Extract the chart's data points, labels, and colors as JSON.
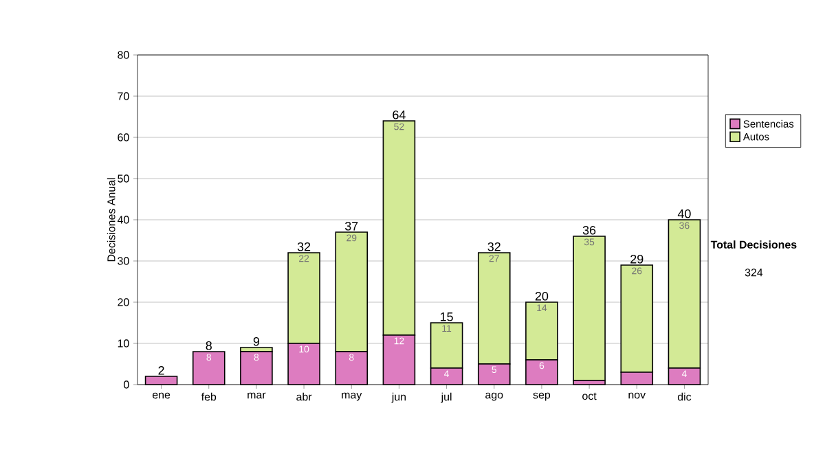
{
  "chart_data": {
    "type": "bar",
    "stacked": true,
    "ylabel": "Decisiones Anual",
    "categories": [
      "ene",
      "feb",
      "mar",
      "abr",
      "may",
      "jun",
      "jul",
      "ago",
      "sep",
      "oct",
      "nov",
      "dic"
    ],
    "series": [
      {
        "name": "Sentencias",
        "color": "#dd7cc0",
        "values": [
          2,
          8,
          8,
          10,
          8,
          12,
          4,
          5,
          6,
          1,
          3,
          4
        ],
        "value_labels": [
          null,
          "8",
          "8",
          "10",
          "8",
          "12",
          "4",
          "5",
          "6",
          null,
          null,
          "4"
        ]
      },
      {
        "name": "Autos",
        "color": "#d3ea96",
        "values": [
          0,
          0,
          1,
          22,
          29,
          52,
          11,
          27,
          14,
          35,
          26,
          36
        ],
        "value_labels": [
          null,
          null,
          null,
          "22",
          "29",
          "52",
          "11",
          "27",
          "14",
          "35",
          "26",
          "36"
        ]
      }
    ],
    "totals": [
      "2",
      "8",
      "9",
      "32",
      "37",
      "64",
      "15",
      "32",
      "20",
      "36",
      "29",
      "40"
    ],
    "ylim": [
      0,
      80
    ],
    "yticks": [
      0,
      10,
      20,
      30,
      40,
      50,
      60,
      70,
      80
    ],
    "grid": "y",
    "legend": "right",
    "annotations": [
      "Total Decisiones",
      "324"
    ]
  }
}
